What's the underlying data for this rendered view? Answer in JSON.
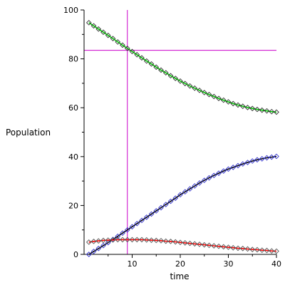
{
  "chart_data": {
    "type": "line",
    "title": "",
    "xlabel": "time",
    "ylabel": "Population",
    "xlim": [
      0,
      40
    ],
    "ylim": [
      0,
      100
    ],
    "x_ticks": [
      10,
      20,
      30,
      40
    ],
    "y_ticks": [
      0,
      20,
      40,
      60,
      80,
      100
    ],
    "grid": false,
    "reference_lines": {
      "x": 9.0,
      "y": 83.5,
      "color": "#cc00cc"
    },
    "series": [
      {
        "color": "#00cc00",
        "marker_color": "#333333",
        "x": [
          1,
          2,
          3,
          4,
          5,
          6,
          7,
          8,
          9,
          10,
          11,
          12,
          13,
          14,
          15,
          16,
          17,
          18,
          19,
          20,
          21,
          22,
          23,
          24,
          25,
          26,
          27,
          28,
          29,
          30,
          31,
          32,
          33,
          34,
          35,
          36,
          37,
          38,
          39,
          40
        ],
        "values": [
          94.8,
          93.5,
          92.2,
          90.9,
          89.6,
          88.3,
          86.9,
          85.6,
          84.3,
          83.0,
          81.7,
          80.4,
          79.1,
          77.9,
          76.6,
          75.4,
          74.3,
          73.1,
          72.0,
          70.9,
          69.9,
          68.9,
          68.0,
          67.1,
          66.2,
          65.4,
          64.6,
          63.8,
          63.1,
          62.4,
          61.7,
          61.1,
          60.6,
          60.1,
          59.7,
          59.3,
          59.0,
          58.7,
          58.4,
          58.2
        ]
      },
      {
        "color": "#000000",
        "marker_color": "#3333cc",
        "x": [
          1,
          2,
          3,
          4,
          5,
          6,
          7,
          8,
          9,
          10,
          11,
          12,
          13,
          14,
          15,
          16,
          17,
          18,
          19,
          20,
          21,
          22,
          23,
          24,
          25,
          26,
          27,
          28,
          29,
          30,
          31,
          32,
          33,
          34,
          35,
          36,
          37,
          38,
          39,
          40
        ],
        "values": [
          0.0,
          1.2,
          2.4,
          3.6,
          4.8,
          6.1,
          7.4,
          8.7,
          10.0,
          11.3,
          12.6,
          13.9,
          15.2,
          16.5,
          17.8,
          19.1,
          20.4,
          21.7,
          23.0,
          24.4,
          25.6,
          26.8,
          28.0,
          29.2,
          30.3,
          31.3,
          32.3,
          33.2,
          34.1,
          34.9,
          35.6,
          36.3,
          37.0,
          37.6,
          38.2,
          38.7,
          39.1,
          39.5,
          39.8,
          40.1
        ]
      },
      {
        "color": "#ff0000",
        "marker_color": "#555555",
        "x": [
          1,
          2,
          3,
          4,
          5,
          6,
          7,
          8,
          9,
          10,
          11,
          12,
          13,
          14,
          15,
          16,
          17,
          18,
          19,
          20,
          21,
          22,
          23,
          24,
          25,
          26,
          27,
          28,
          29,
          30,
          31,
          32,
          33,
          34,
          35,
          36,
          37,
          38,
          39,
          40
        ],
        "values": [
          5.0,
          5.3,
          5.5,
          5.7,
          5.8,
          5.9,
          6.0,
          6.0,
          6.0,
          6.0,
          6.0,
          6.0,
          5.9,
          5.8,
          5.7,
          5.6,
          5.4,
          5.3,
          5.1,
          4.9,
          4.7,
          4.5,
          4.3,
          4.1,
          3.9,
          3.7,
          3.5,
          3.3,
          3.1,
          2.9,
          2.7,
          2.5,
          2.4,
          2.2,
          2.0,
          1.9,
          1.7,
          1.6,
          1.4,
          1.3
        ]
      }
    ]
  }
}
